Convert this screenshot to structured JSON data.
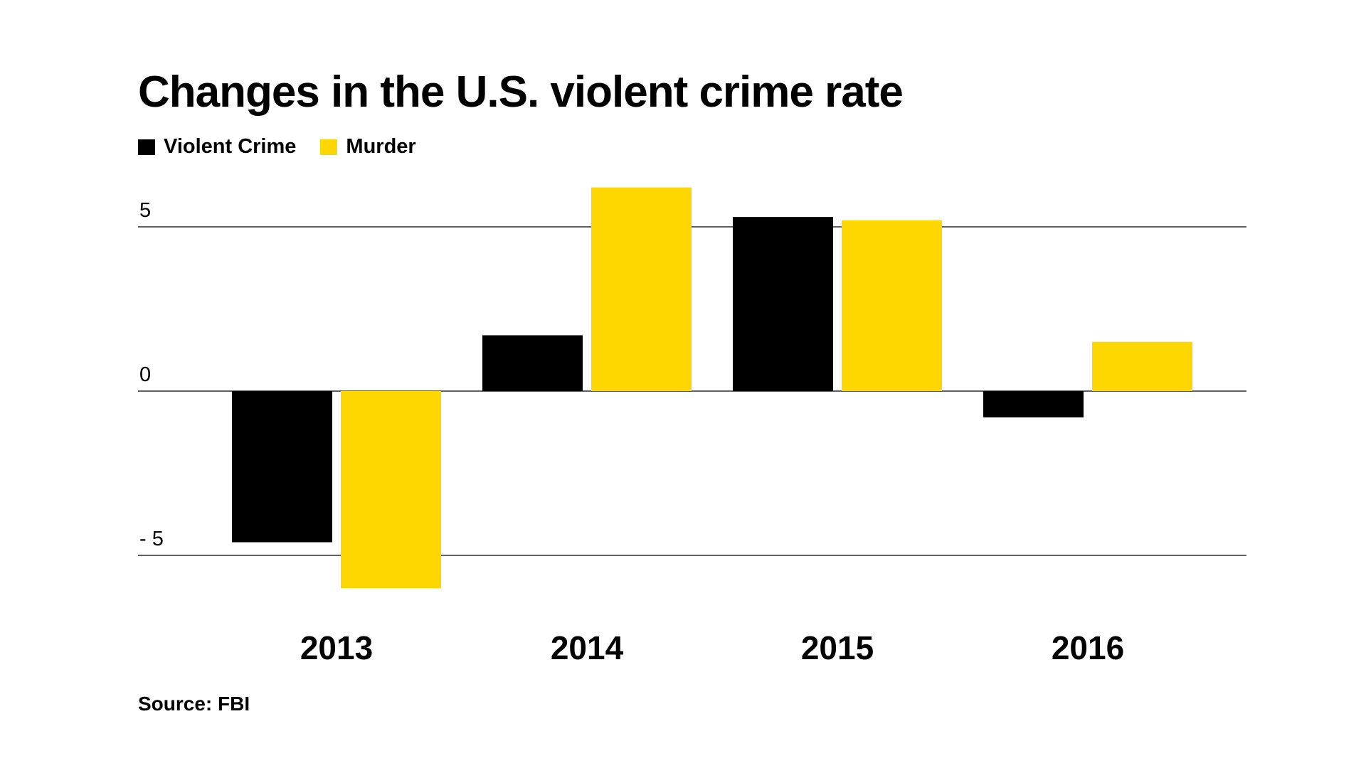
{
  "source": "Source: FBI",
  "colors": {
    "violent_crime": "#000000",
    "murder": "#FFD700",
    "axis": "#000000",
    "background": "#FFFFFF"
  },
  "chart_data": {
    "type": "bar",
    "title": "Changes in the U.S. violent crime rate",
    "xlabel": "",
    "ylabel": "",
    "categories": [
      "2013",
      "2014",
      "2015",
      "2016"
    ],
    "series": [
      {
        "name": "Violent Crime",
        "values": [
          -4.6,
          1.7,
          5.3,
          -0.8
        ]
      },
      {
        "name": "Murder",
        "values": [
          -6.0,
          6.2,
          5.2,
          1.5
        ]
      }
    ],
    "y_ticks": [
      5,
      0,
      -5
    ],
    "y_tick_labels": [
      "5",
      "0",
      "- 5"
    ],
    "ylim": [
      -6.5,
      6.5
    ],
    "grid": true,
    "legend_position": "top-left"
  }
}
